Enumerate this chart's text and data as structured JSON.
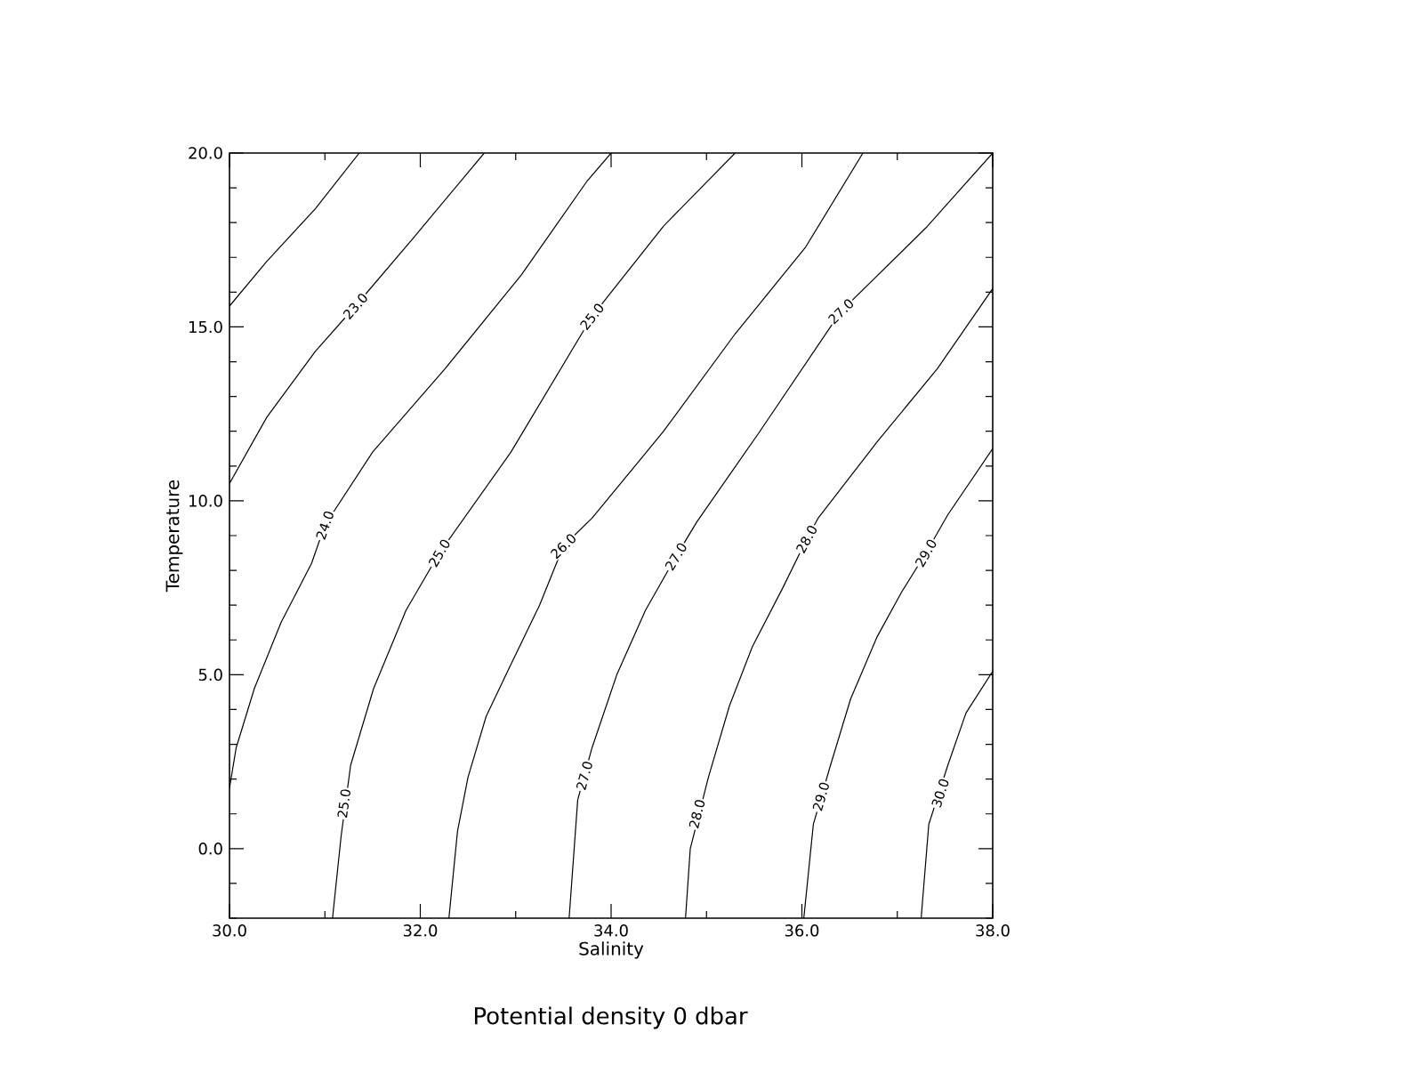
{
  "chart_data": {
    "type": "line",
    "title": "Potential density 0 dbar",
    "xlabel": "Salinity",
    "ylabel": "Temperature",
    "xlim": [
      30,
      38
    ],
    "ylim": [
      -2,
      20
    ],
    "xticks": [
      {
        "value": 30,
        "label": "30.0"
      },
      {
        "value": 31,
        "label": null
      },
      {
        "value": 32,
        "label": "32.0"
      },
      {
        "value": 33,
        "label": null
      },
      {
        "value": 34,
        "label": "34.0"
      },
      {
        "value": 35,
        "label": null
      },
      {
        "value": 36,
        "label": "36.0"
      },
      {
        "value": 37,
        "label": null
      },
      {
        "value": 38,
        "label": "38.0"
      }
    ],
    "yticks": [
      {
        "value": -2,
        "label": null
      },
      {
        "value": -1,
        "label": null
      },
      {
        "value": 0,
        "label": "0.0"
      },
      {
        "value": 1,
        "label": null
      },
      {
        "value": 2,
        "label": null
      },
      {
        "value": 3,
        "label": null
      },
      {
        "value": 4,
        "label": null
      },
      {
        "value": 5,
        "label": "5.0"
      },
      {
        "value": 6,
        "label": null
      },
      {
        "value": 7,
        "label": null
      },
      {
        "value": 8,
        "label": null
      },
      {
        "value": 9,
        "label": null
      },
      {
        "value": 10,
        "label": "10.0"
      },
      {
        "value": 11,
        "label": null
      },
      {
        "value": 12,
        "label": null
      },
      {
        "value": 13,
        "label": null
      },
      {
        "value": 14,
        "label": null
      },
      {
        "value": 15,
        "label": "15.0"
      },
      {
        "value": 16,
        "label": null
      },
      {
        "value": 17,
        "label": null
      },
      {
        "value": 18,
        "label": null
      },
      {
        "value": 19,
        "label": null
      },
      {
        "value": 20,
        "label": "20.0"
      }
    ],
    "marker": "none",
    "line_style": "solid",
    "series": [
      {
        "color": "#000000",
        "x": [
          30,
          30.39,
          30.9,
          31.36
        ],
        "values": [
          15.6,
          16.88,
          18.4,
          20
        ]
      },
      {
        "color": "#000000",
        "x": [
          30,
          30.39,
          30.9,
          31.32,
          31.94,
          32.67
        ],
        "values": [
          10.5,
          12.4,
          14.3,
          15.6,
          17.6,
          20
        ]
      },
      {
        "color": "#000000",
        "x": [
          30,
          30.07,
          30.26,
          30.54,
          30.86,
          31.0,
          31.5,
          32.26,
          33.06,
          33.75,
          34.0
        ],
        "values": [
          1.74,
          2.9,
          4.6,
          6.5,
          8.2,
          9.3,
          11.4,
          13.8,
          16.5,
          19.2,
          20
        ]
      },
      {
        "color": "#000000",
        "x": [
          31.08,
          31.17,
          31.27,
          31.51,
          31.85,
          32.2,
          32.95,
          33.8,
          34.55,
          35.3
        ],
        "values": [
          -2,
          0.36,
          2.4,
          4.6,
          6.85,
          8.5,
          11.4,
          15.3,
          17.9,
          20
        ]
      },
      {
        "color": "#000000",
        "x": [
          32.3,
          32.39,
          32.5,
          32.69,
          32.95,
          33.25,
          33.5,
          33.8,
          34.55,
          35.3,
          36.04,
          36.64
        ],
        "values": [
          -2,
          0.5,
          2.05,
          3.8,
          5.3,
          7.0,
          8.7,
          9.5,
          12.0,
          14.8,
          17.3,
          20
        ]
      },
      {
        "color": "#000000",
        "x": [
          33.56,
          33.65,
          33.8,
          34.06,
          34.36,
          34.68,
          34.9,
          35.56,
          36.41,
          37.3,
          38.0
        ],
        "values": [
          -2,
          1.4,
          2.9,
          5.0,
          6.85,
          8.4,
          9.4,
          12.0,
          15.45,
          17.85,
          20
        ]
      },
      {
        "color": "#000000",
        "x": [
          34.78,
          34.83,
          35.02,
          35.24,
          35.48,
          35.8,
          36.05,
          36.17,
          36.79,
          37.42,
          38.0
        ],
        "values": [
          -2,
          0,
          2.05,
          4.1,
          5.8,
          7.5,
          8.9,
          9.5,
          11.7,
          13.8,
          16.1
        ]
      },
      {
        "color": "#000000",
        "x": [
          36.02,
          36.12,
          36.3,
          36.51,
          36.79,
          37.05,
          37.3,
          37.53,
          38.0
        ],
        "values": [
          -2,
          0.7,
          2.4,
          4.3,
          6.1,
          7.4,
          8.5,
          9.6,
          11.5
        ]
      },
      {
        "color": "#000000",
        "x": [
          37.25,
          37.33,
          37.53,
          37.72,
          38.0
        ],
        "values": [
          -2,
          0.7,
          2.4,
          3.9,
          5.1
        ]
      }
    ],
    "annotations": [
      {
        "text": "23.0",
        "x": 31.32,
        "y": 15.6
      },
      {
        "text": "25.0",
        "x": 33.8,
        "y": 15.3
      },
      {
        "text": "27.0",
        "x": 36.41,
        "y": 15.45
      },
      {
        "text": "24.0",
        "x": 31.0,
        "y": 9.3
      },
      {
        "text": "26.0",
        "x": 33.5,
        "y": 8.7
      },
      {
        "text": "28.0",
        "x": 36.05,
        "y": 8.9
      },
      {
        "text": "25.0",
        "x": 32.2,
        "y": 8.5
      },
      {
        "text": "27.0",
        "x": 34.68,
        "y": 8.4
      },
      {
        "text": "29.0",
        "x": 37.3,
        "y": 8.5
      },
      {
        "text": "25.0",
        "x": 31.2,
        "y": 1.3
      },
      {
        "text": "27.0",
        "x": 33.72,
        "y": 2.1
      },
      {
        "text": "28.0",
        "x": 34.9,
        "y": 1.0
      },
      {
        "text": "29.0",
        "x": 36.2,
        "y": 1.5
      },
      {
        "text": "30.0",
        "x": 37.45,
        "y": 1.6
      }
    ]
  }
}
